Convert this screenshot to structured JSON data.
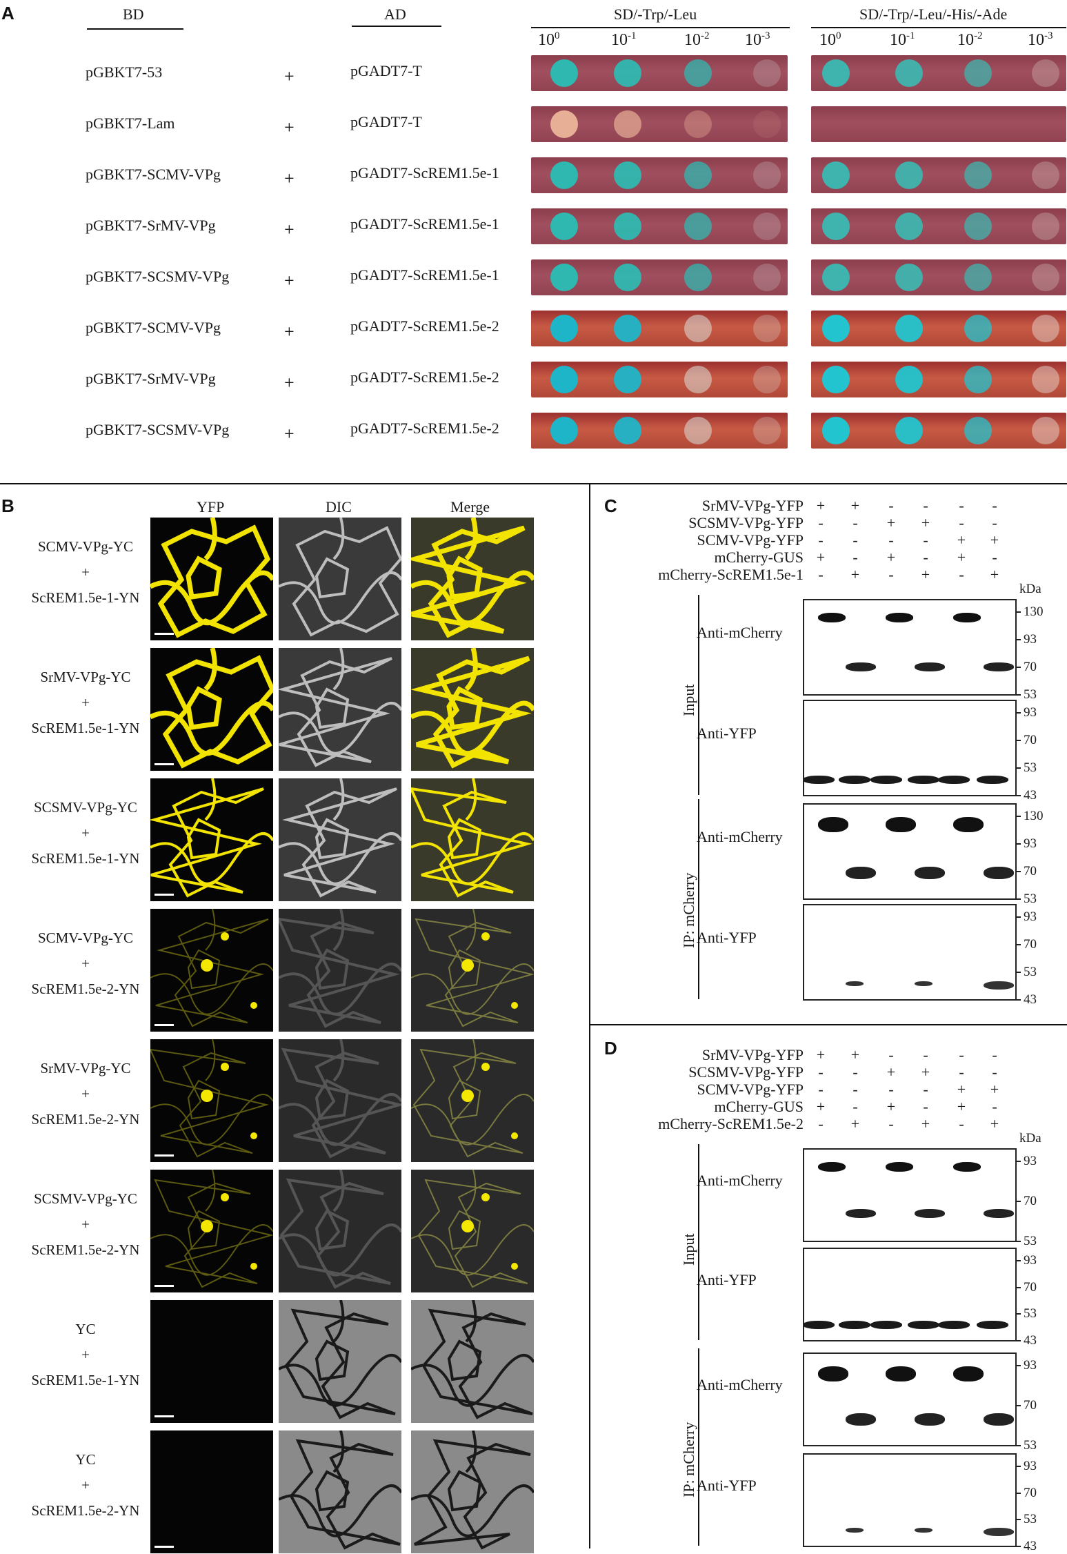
{
  "panel_labels": {
    "a": "A",
    "b": "B",
    "c": "C",
    "d": "D"
  },
  "panel_a": {
    "bd_header": "BD",
    "ad_header": "AD",
    "media": [
      "SD/-Trp/-Leu",
      "SD/-Trp/-Leu/-His/-Ade"
    ],
    "dilution_base": "10",
    "dilution_exps": [
      "0",
      "-1",
      "-2",
      "-3"
    ],
    "plus": "+",
    "rows": [
      {
        "bd": "pGBKT7-53",
        "ad": "pGADT7-T"
      },
      {
        "bd": "pGBKT7-Lam",
        "ad": "pGADT7-T"
      },
      {
        "bd": "pGBKT7-SCMV-VPg",
        "ad": "pGADT7-ScREM1.5e-1"
      },
      {
        "bd": "pGBKT7-SrMV-VPg",
        "ad": "pGADT7-ScREM1.5e-1"
      },
      {
        "bd": "pGBKT7-SCSMV-VPg",
        "ad": "pGADT7-ScREM1.5e-1"
      },
      {
        "bd": "pGBKT7-SCMV-VPg",
        "ad": "pGADT7-ScREM1.5e-2"
      },
      {
        "bd": "pGBKT7-SrMV-VPg",
        "ad": "pGADT7-ScREM1.5e-2"
      },
      {
        "bd": "pGBKT7-SCSMV-VPg",
        "ad": "pGADT7-ScREM1.5e-2"
      }
    ]
  },
  "panel_b": {
    "columns": [
      "YFP",
      "DIC",
      "Merge"
    ],
    "plus": "+",
    "rows": [
      {
        "top": "SCMV-VPg-YC",
        "bottom": "ScREM1.5e-1-YN",
        "pattern": "membrane-bright"
      },
      {
        "top": "SrMV-VPg-YC",
        "bottom": "ScREM1.5e-1-YN",
        "pattern": "membrane-bright"
      },
      {
        "top": "SCSMV-VPg-YC",
        "bottom": "ScREM1.5e-1-YN",
        "pattern": "membrane"
      },
      {
        "top": "SCMV-VPg-YC",
        "bottom": "ScREM1.5e-2-YN",
        "pattern": "nuclear"
      },
      {
        "top": "SrMV-VPg-YC",
        "bottom": "ScREM1.5e-2-YN",
        "pattern": "nuclear"
      },
      {
        "top": "SCSMV-VPg-YC",
        "bottom": "ScREM1.5e-2-YN",
        "pattern": "nuclear"
      },
      {
        "top": "YC",
        "bottom": "ScREM1.5e-1-YN",
        "pattern": "none"
      },
      {
        "top": "YC",
        "bottom": "ScREM1.5e-2-YN",
        "pattern": "none"
      }
    ]
  },
  "panel_c": {
    "rows": [
      {
        "label": "SrMV-VPg-YFP",
        "signs": [
          "+",
          "+",
          "-",
          "-",
          "-",
          "-"
        ]
      },
      {
        "label": "SCSMV-VPg-YFP",
        "signs": [
          "-",
          "-",
          "+",
          "+",
          "-",
          "-"
        ]
      },
      {
        "label": "SCMV-VPg-YFP",
        "signs": [
          "-",
          "-",
          "-",
          "-",
          "+",
          "+"
        ]
      },
      {
        "label": "mCherry-GUS",
        "signs": [
          "+",
          "-",
          "+",
          "-",
          "+",
          "-"
        ]
      },
      {
        "label": "mCherry-ScREM1.5e-1",
        "signs": [
          "-",
          "+",
          "-",
          "+",
          "-",
          "+"
        ]
      }
    ],
    "kda": "kDa",
    "input_label": "Input",
    "ip_label": "IP: mCherry",
    "blots": [
      {
        "antibody": "Anti-mCherry",
        "markers": [
          "130",
          "93",
          "70",
          "53"
        ]
      },
      {
        "antibody": "Anti-YFP",
        "markers": [
          "93",
          "70",
          "53",
          "43"
        ]
      },
      {
        "antibody": "Anti-mCherry",
        "markers": [
          "130",
          "93",
          "70",
          "53"
        ]
      },
      {
        "antibody": "Anti-YFP",
        "markers": [
          "93",
          "70",
          "53",
          "43"
        ]
      }
    ]
  },
  "panel_d": {
    "rows": [
      {
        "label": "SrMV-VPg-YFP",
        "signs": [
          "+",
          "+",
          "-",
          "-",
          "-",
          "-"
        ]
      },
      {
        "label": "SCSMV-VPg-YFP",
        "signs": [
          "-",
          "-",
          "+",
          "+",
          "-",
          "-"
        ]
      },
      {
        "label": "SCMV-VPg-YFP",
        "signs": [
          "-",
          "-",
          "-",
          "-",
          "+",
          "+"
        ]
      },
      {
        "label": "mCherry-GUS",
        "signs": [
          "+",
          "-",
          "+",
          "-",
          "+",
          "-"
        ]
      },
      {
        "label": "mCherry-ScREM1.5e-2",
        "signs": [
          "-",
          "+",
          "-",
          "+",
          "-",
          "+"
        ]
      }
    ],
    "kda": "kDa",
    "input_label": "Input",
    "ip_label": "IP: mCherry",
    "blots": [
      {
        "antibody": "Anti-mCherry",
        "markers": [
          "93",
          "70",
          "53"
        ]
      },
      {
        "antibody": "Anti-YFP",
        "markers": [
          "93",
          "70",
          "53",
          "43"
        ]
      },
      {
        "antibody": "Anti-mCherry",
        "markers": [
          "93",
          "70",
          "53"
        ]
      },
      {
        "antibody": "Anti-YFP",
        "markers": [
          "93",
          "70",
          "53",
          "43"
        ]
      }
    ]
  },
  "colors": {
    "plate_a": "#9a4a5a",
    "plate_b": "#b94a3c",
    "colony_blue": "#2fb8b0",
    "yfp": "#f2e400"
  }
}
